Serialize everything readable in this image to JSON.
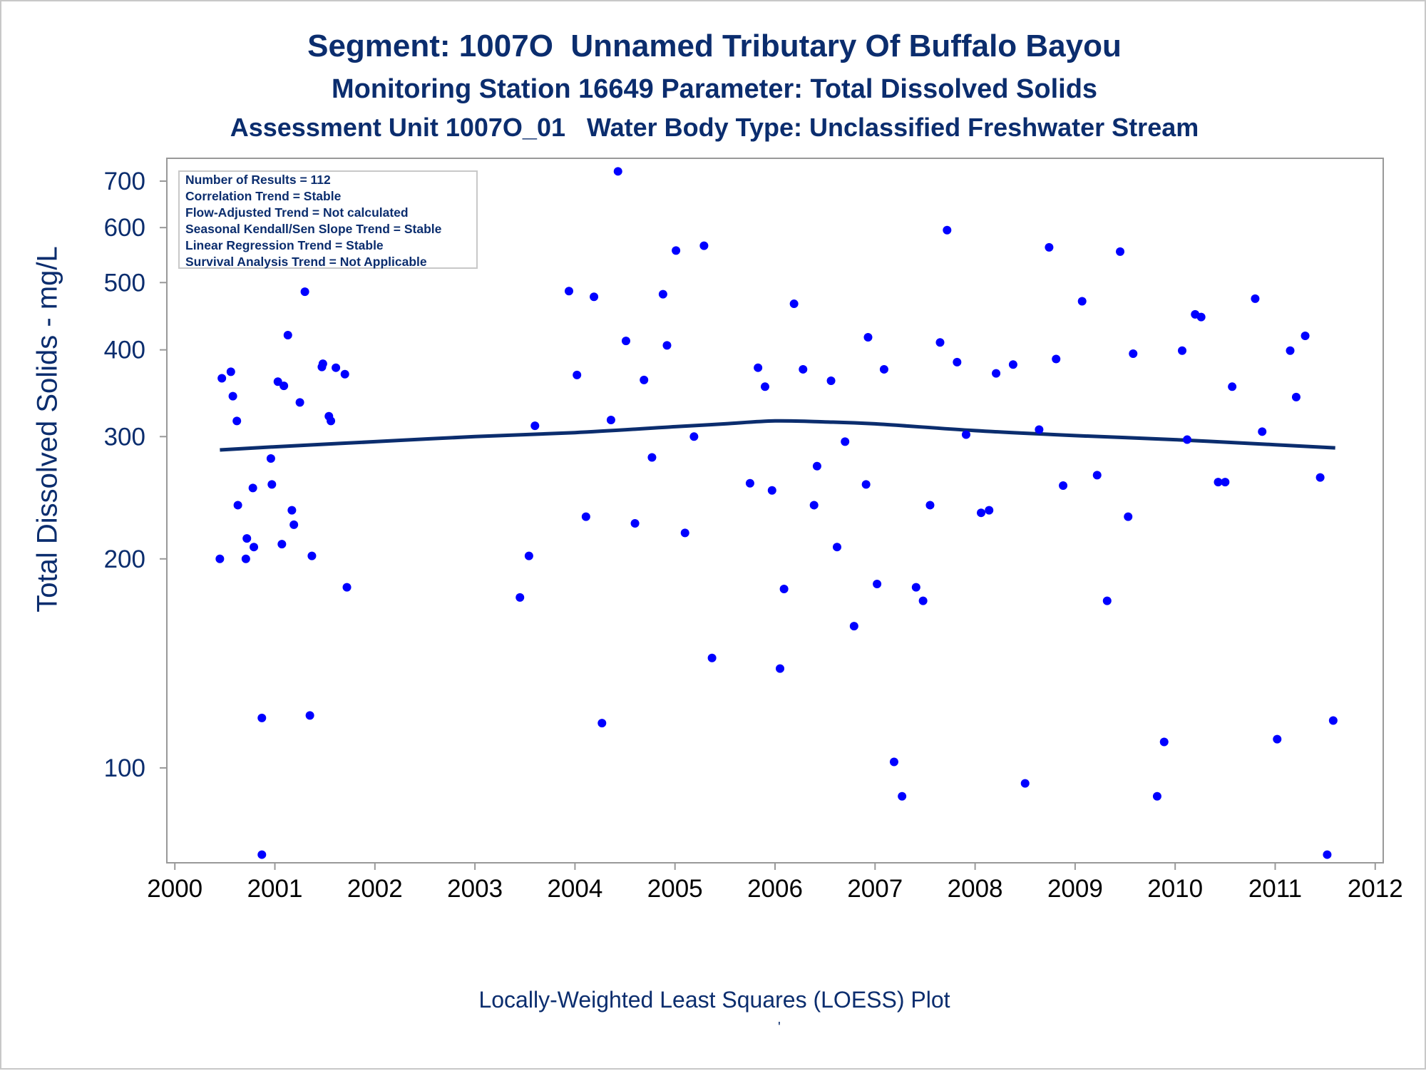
{
  "titles": {
    "line1": "Segment: 1007O  Unnamed Tributary Of Buffalo Bayou",
    "line2": "Monitoring Station 16649 Parameter: Total Dissolved Solids",
    "line3": "Assessment Unit 1007O_01   Water Body Type: Unclassified Freshwater Stream"
  },
  "stats": [
    "Number of Results = 112",
    "Correlation Trend = Stable",
    "Flow-Adjusted Trend = Not calculated",
    "Seasonal Kendall/Sen Slope Trend = Stable",
    "Linear Regression Trend = Stable",
    "Survival Analysis Trend = Not Applicable"
  ],
  "footnote": "Locally-Weighted Least Squares (LOESS) Plot",
  "footmark": "'",
  "colors": {
    "text": "#0b2d6e",
    "points": "#0000ff",
    "loess": "#0b2d6e",
    "axis": "#999999"
  },
  "chart_data": {
    "type": "scatter",
    "xlabel": "",
    "ylabel": "Total Dissolved Solids - mg/L",
    "y_scale": "log",
    "xlim": [
      1999.92,
      2012.08
    ],
    "ylim": [
      73,
      755
    ],
    "x_ticks": [
      2000,
      2001,
      2002,
      2003,
      2004,
      2005,
      2006,
      2007,
      2008,
      2009,
      2010,
      2011,
      2012
    ],
    "x_tick_labels": [
      "2000",
      "2001",
      "2002",
      "2003",
      "2004",
      "2005",
      "2006",
      "2007",
      "2008",
      "2009",
      "2010",
      "2011",
      "2012"
    ],
    "y_ticks": [
      100,
      200,
      300,
      400,
      500,
      600,
      700
    ],
    "y_tick_labels": [
      "100",
      "200",
      "300",
      "400",
      "500",
      "600",
      "700"
    ],
    "grid": false,
    "series": [
      {
        "kind": "points",
        "x": [
          2000.45,
          2000.47,
          2000.56,
          2000.58,
          2000.62,
          2000.63,
          2000.71,
          2000.72,
          2000.78,
          2000.79,
          2000.87,
          2000.87,
          2000.96,
          2000.97,
          2001.03,
          2001.07,
          2001.09,
          2001.13,
          2001.17,
          2001.19,
          2001.25,
          2001.3,
          2001.35,
          2001.37,
          2001.47,
          2001.48,
          2001.54,
          2001.56,
          2001.61,
          2001.7,
          2001.72,
          2003.45,
          2003.54,
          2003.6,
          2003.94,
          2004.02,
          2004.11,
          2004.19,
          2004.27,
          2004.36,
          2004.43,
          2004.51,
          2004.6,
          2004.69,
          2004.77,
          2004.88,
          2004.92,
          2005.01,
          2005.1,
          2005.19,
          2005.29,
          2005.37,
          2005.75,
          2005.83,
          2005.9,
          2005.97,
          2006.05,
          2006.09,
          2006.19,
          2006.28,
          2006.39,
          2006.42,
          2006.56,
          2006.62,
          2006.7,
          2006.79,
          2006.91,
          2006.93,
          2007.02,
          2007.09,
          2007.19,
          2007.27,
          2007.41,
          2007.48,
          2007.55,
          2007.65,
          2007.72,
          2007.82,
          2007.91,
          2008.06,
          2008.14,
          2008.21,
          2008.38,
          2008.5,
          2008.64,
          2008.74,
          2008.81,
          2008.88,
          2009.07,
          2009.22,
          2009.32,
          2009.45,
          2009.53,
          2009.58,
          2009.82,
          2009.89,
          2010.07,
          2010.12,
          2010.2,
          2010.26,
          2010.43,
          2010.5,
          2010.57,
          2010.8,
          2010.87,
          2011.02,
          2011.15,
          2011.21,
          2011.3,
          2011.45,
          2011.52,
          2011.58
        ],
        "y": [
          200,
          364,
          372,
          343,
          316,
          239,
          200,
          214,
          253,
          208,
          118,
          75,
          279,
          256,
          360,
          210,
          355,
          420,
          235,
          224,
          336,
          485,
          119,
          202,
          378,
          382,
          321,
          316,
          377,
          369,
          182,
          176,
          202,
          311,
          486,
          368,
          230,
          477,
          116,
          317,
          723,
          412,
          225,
          362,
          280,
          481,
          406,
          556,
          218,
          300,
          565,
          144,
          257,
          377,
          354,
          251,
          139,
          181,
          466,
          375,
          239,
          272,
          361,
          208,
          295,
          160,
          256,
          417,
          184,
          375,
          102,
          91,
          182,
          174,
          239,
          410,
          595,
          384,
          302,
          233,
          235,
          370,
          381,
          95,
          307,
          562,
          388,
          255,
          470,
          264,
          174,
          554,
          230,
          395,
          91,
          109,
          399,
          297,
          450,
          446,
          258,
          258,
          354,
          474,
          305,
          110,
          399,
          342,
          419,
          262,
          75,
          117
        ]
      },
      {
        "kind": "loess",
        "x": [
          2000.45,
          2001.0,
          2002.0,
          2003.0,
          2004.0,
          2005.0,
          2005.5,
          2006.0,
          2006.5,
          2007.0,
          2008.0,
          2009.0,
          2010.0,
          2011.0,
          2011.6
        ],
        "y": [
          287,
          290,
          295,
          300,
          304,
          310,
          313,
          316,
          315,
          313,
          306,
          301,
          297,
          292,
          289
        ]
      }
    ]
  }
}
